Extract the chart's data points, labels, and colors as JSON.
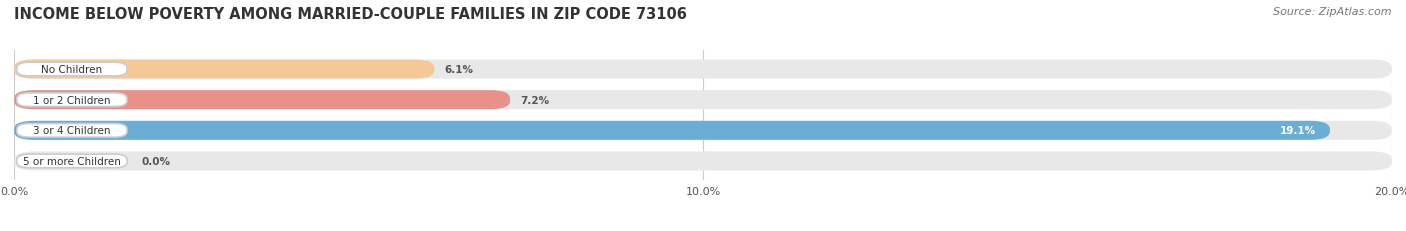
{
  "title": "INCOME BELOW POVERTY AMONG MARRIED-COUPLE FAMILIES IN ZIP CODE 73106",
  "source": "Source: ZipAtlas.com",
  "categories": [
    "No Children",
    "1 or 2 Children",
    "3 or 4 Children",
    "5 or more Children"
  ],
  "values": [
    6.1,
    7.2,
    19.1,
    0.0
  ],
  "bar_colors": [
    "#f5c897",
    "#e8908a",
    "#6aaed6",
    "#c4aed4"
  ],
  "bar_bg_color": "#e8e8e8",
  "label_bg_color": "#ffffff",
  "xlim": [
    0,
    20.0
  ],
  "xticks": [
    0.0,
    10.0,
    20.0
  ],
  "xticklabels": [
    "0.0%",
    "10.0%",
    "20.0%"
  ],
  "title_fontsize": 10.5,
  "source_fontsize": 8,
  "bar_height": 0.62,
  "figsize": [
    14.06,
    2.32
  ],
  "dpi": 100,
  "background_color": "#ffffff",
  "grid_color": "#cccccc",
  "value_label_color_inside": "#ffffff",
  "value_label_color_outside": "#555555",
  "category_label_fontsize": 7.5,
  "value_fontsize": 7.5,
  "inside_threshold": 10.0
}
